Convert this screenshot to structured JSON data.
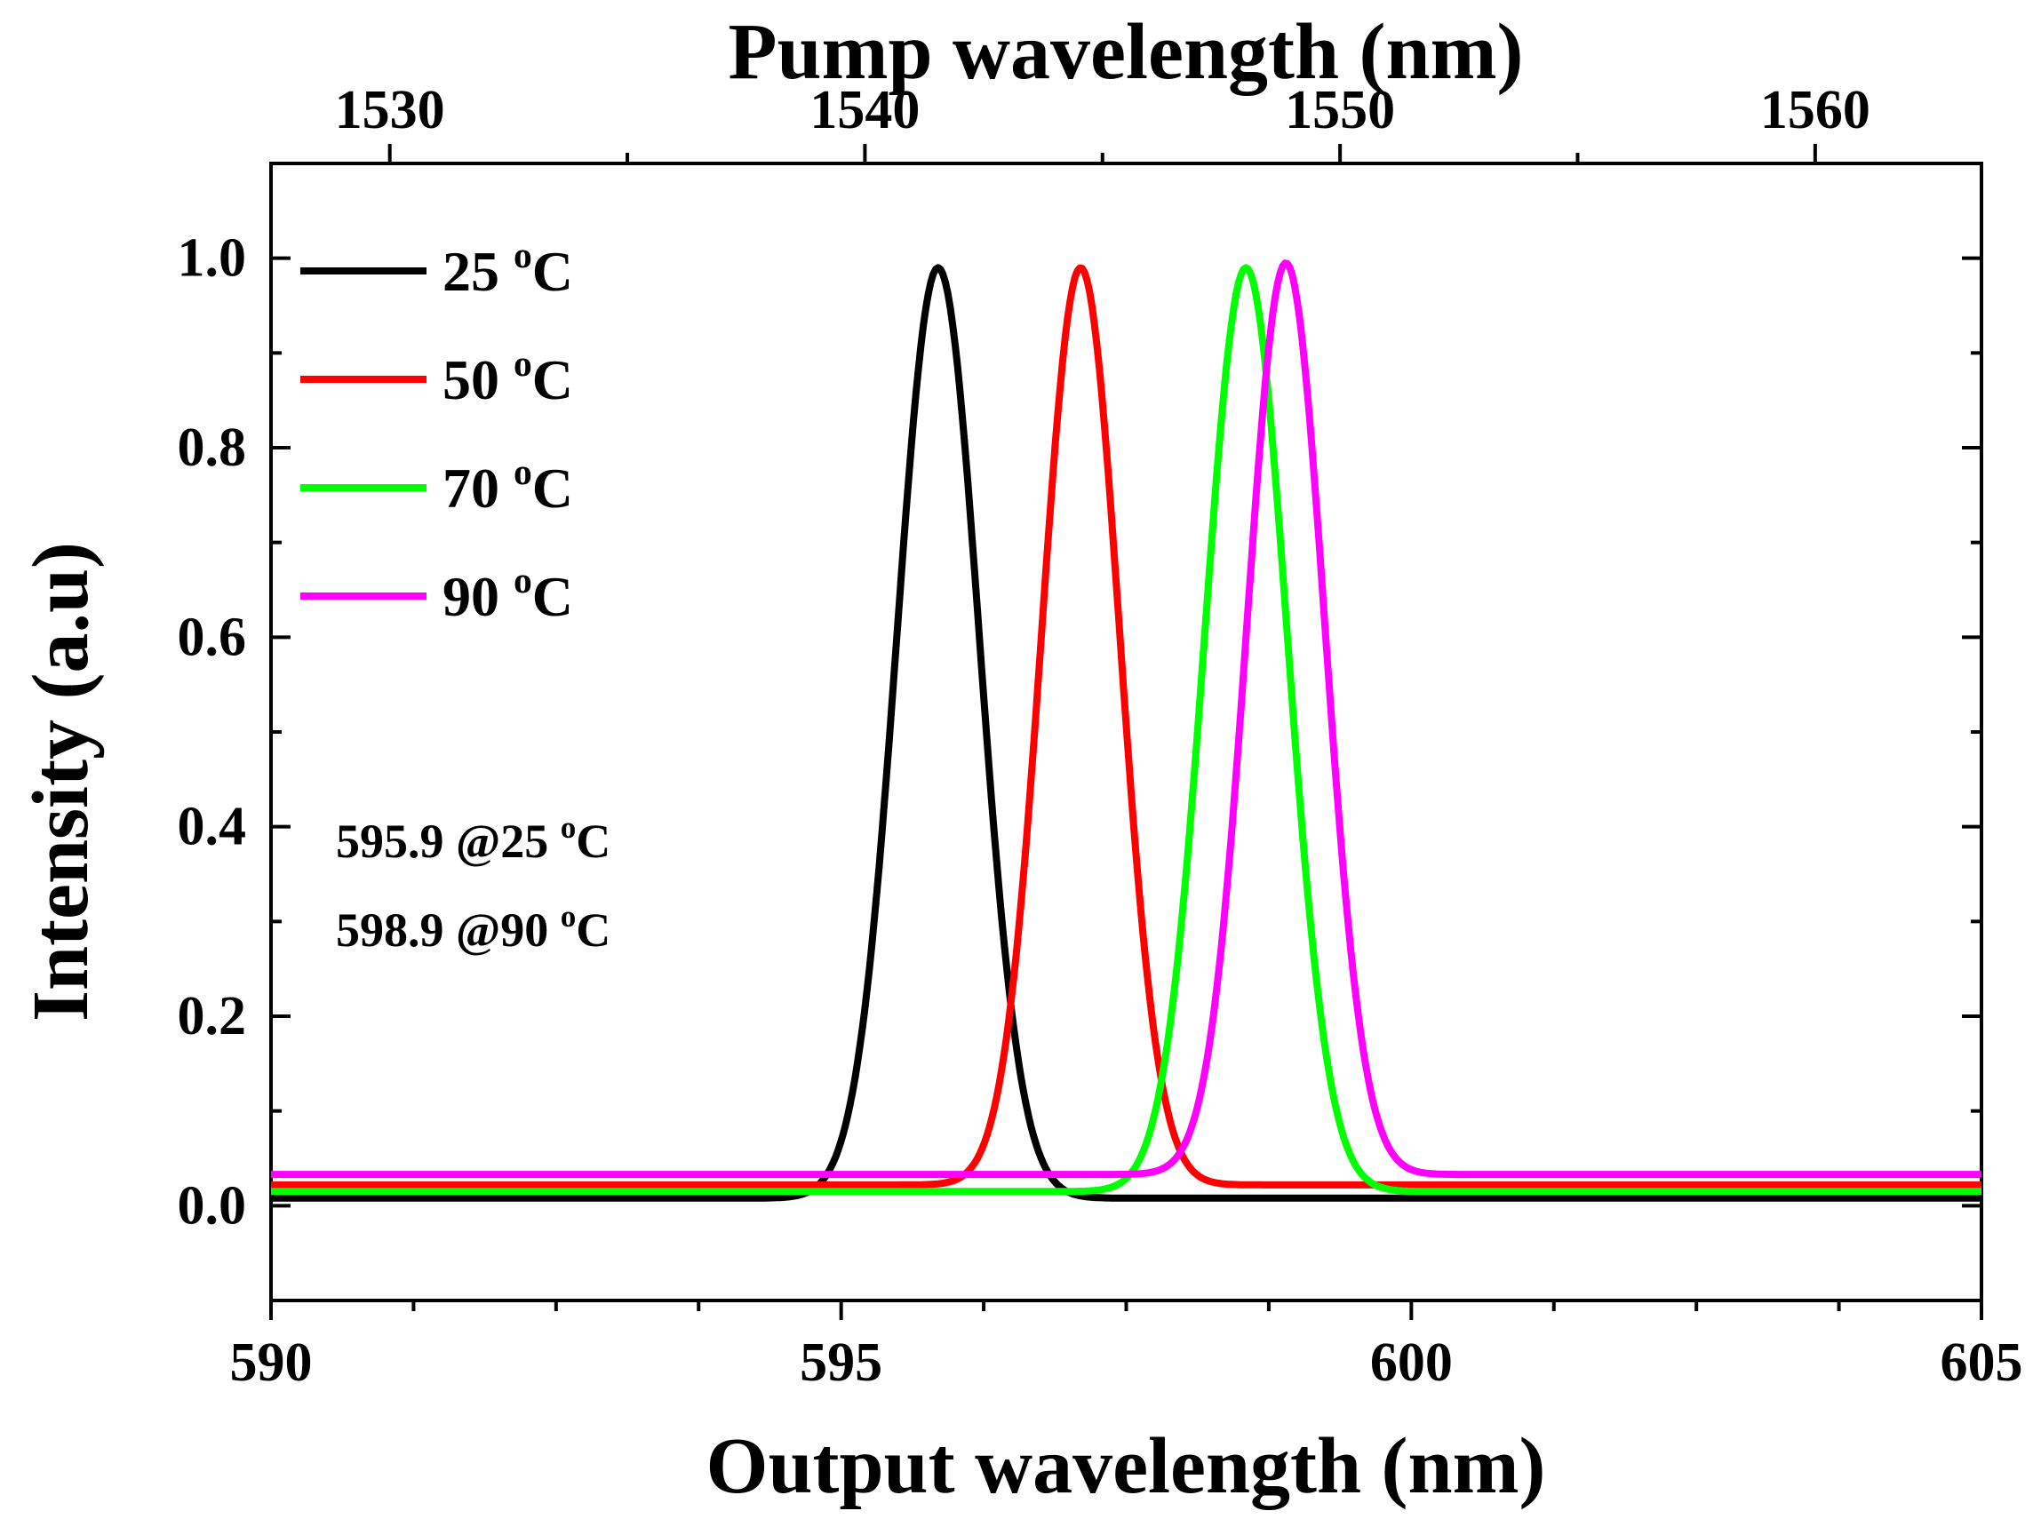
{
  "chart_data": {
    "type": "line",
    "xlabel": "Output wavelength (nm)",
    "x2label": "Pump wavelength (nm)",
    "ylabel": "Intensity (a.u)",
    "xlim": [
      590,
      605
    ],
    "x2lim": [
      1527.5,
      1563.5
    ],
    "ylim": [
      -0.1,
      1.1
    ],
    "xticks": [
      590,
      595,
      600,
      605
    ],
    "x2ticks": [
      1530,
      1540,
      1550,
      1560
    ],
    "yticks": [
      0.0,
      0.2,
      0.4,
      0.6,
      0.8,
      1.0
    ],
    "ytick_labels": [
      "0.0",
      "0.2",
      "0.4",
      "0.6",
      "0.8",
      "1.0"
    ],
    "legend_position": "top-left",
    "series": [
      {
        "name": "25 °C",
        "label_value": "25",
        "color": "#000000",
        "baseline": 0.008,
        "center": 595.85,
        "sigma": 0.36,
        "peak": 0.99
      },
      {
        "name": "50 °C",
        "label_value": "50",
        "color": "#ff0000",
        "baseline": 0.022,
        "center": 597.1,
        "sigma": 0.34,
        "peak": 0.99
      },
      {
        "name": "70 °C",
        "label_value": "70",
        "color": "#00ff00",
        "baseline": 0.015,
        "center": 598.55,
        "sigma": 0.36,
        "peak": 0.99
      },
      {
        "name": "90 °C",
        "label_value": "90",
        "color": "#ff00ff",
        "baseline": 0.033,
        "center": 598.9,
        "sigma": 0.34,
        "peak": 0.995
      }
    ],
    "annotations": [
      {
        "value": "595.9 @25",
        "unit_sup": "o",
        "unit": "C"
      },
      {
        "value": "598.9 @90",
        "unit_sup": "o",
        "unit": "C"
      }
    ],
    "degree_sup": "o",
    "degree_unit": "C"
  }
}
